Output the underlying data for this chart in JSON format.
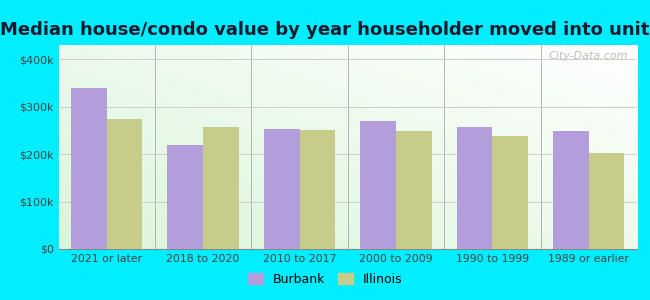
{
  "categories": [
    "2021 or later",
    "2018 to 2020",
    "2010 to 2017",
    "2000 to 2009",
    "1990 to 1999",
    "1989 or earlier"
  ],
  "burbank_values": [
    340000,
    220000,
    253000,
    270000,
    258000,
    248000
  ],
  "illinois_values": [
    275000,
    258000,
    250000,
    248000,
    238000,
    202000
  ],
  "burbank_color": "#b39ddb",
  "illinois_color": "#c8cc8a",
  "title": "Median house/condo value by year householder moved into unit",
  "legend_labels": [
    "Burbank",
    "Illinois"
  ],
  "yticks": [
    0,
    100000,
    200000,
    300000,
    400000
  ],
  "ytick_labels": [
    "$0",
    "$100k",
    "$200k",
    "$300k",
    "$400k"
  ],
  "ylim": [
    0,
    430000
  ],
  "outer_bg": "#00eeff",
  "plot_bg": "#eaf5ea",
  "watermark_text": "City-Data.com",
  "bar_width": 0.37,
  "title_fontsize": 13.0,
  "title_color": "#1a1a2e"
}
